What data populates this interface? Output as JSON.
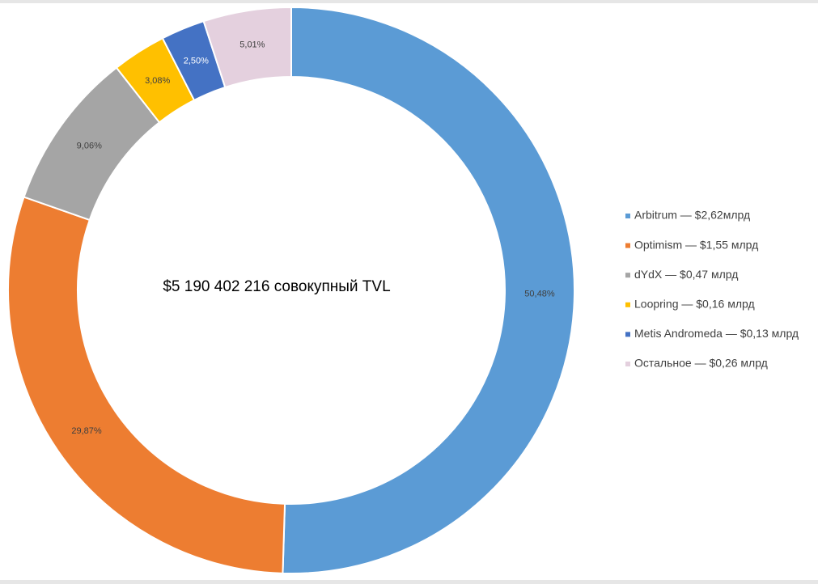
{
  "chart_data": {
    "type": "pie",
    "donut": true,
    "annotation": "$5 190 402 216 совокупный TVL",
    "categories": [
      "Arbitrum — $2,62млрд",
      "Optimism — $1,55 млрд",
      "dYdX — $0,47 млрд",
      "Loopring — $0,16 млрд",
      "Metis Andromeda — $0,13 млрд",
      "Остальное — $0,26 млрд"
    ],
    "values": [
      50.48,
      29.87,
      9.06,
      3.08,
      2.5,
      5.01
    ],
    "value_labels": [
      "50,48%",
      "29,87%",
      "9,06%",
      "3,08%",
      "2,50%",
      "5,01%"
    ],
    "colors": [
      "#5b9bd5",
      "#ed7d31",
      "#a5a5a5",
      "#ffc000",
      "#4472c4",
      "#e4d0de"
    ],
    "label_colors": [
      "#404040",
      "#404040",
      "#404040",
      "#404040",
      "#ffffff",
      "#404040"
    ],
    "legend": "right"
  }
}
